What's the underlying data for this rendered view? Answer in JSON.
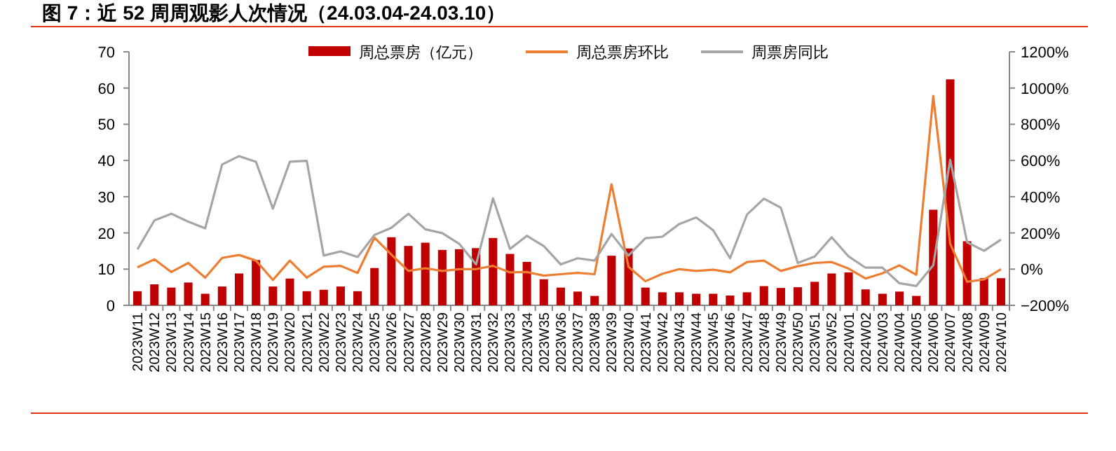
{
  "chart_data": {
    "type": "bar",
    "title": "图 7：近 52 周周观影人次情况（24.03.04-24.03.10）",
    "categories": [
      "2023W11",
      "2023W12",
      "2023W13",
      "2023W14",
      "2023W15",
      "2023W16",
      "2023W17",
      "2023W18",
      "2023W19",
      "2023W20",
      "2023W21",
      "2023W22",
      "2023W23",
      "2023W24",
      "2023W25",
      "2023W26",
      "2023W27",
      "2023W28",
      "2023W29",
      "2023W30",
      "2023W31",
      "2023W32",
      "2023W33",
      "2023W34",
      "2023W35",
      "2023W36",
      "2023W37",
      "2023W38",
      "2023W39",
      "2023W40",
      "2023W41",
      "2023W42",
      "2023W43",
      "2023W44",
      "2023W45",
      "2023W46",
      "2023W47",
      "2023W48",
      "2023W49",
      "2023W50",
      "2023W51",
      "2023W52",
      "2024W01",
      "2024W02",
      "2024W03",
      "2024W04",
      "2024W05",
      "2024W06",
      "2024W07",
      "2024W08",
      "2024W09",
      "2024W10"
    ],
    "series": [
      {
        "name": "周总票房（亿元）",
        "color": "#c00000",
        "values": [
          3.9,
          5.8,
          4.9,
          6.3,
          3.2,
          5.2,
          8.8,
          12.5,
          5.2,
          7.4,
          3.9,
          4.3,
          5.2,
          3.9,
          10.3,
          18.8,
          16.4,
          17.3,
          15.3,
          15.5,
          15.8,
          18.6,
          14.2,
          12.0,
          7.2,
          4.9,
          3.8,
          2.6,
          13.7,
          15.7,
          4.9,
          3.6,
          3.6,
          3.2,
          3.2,
          2.7,
          3.6,
          5.3,
          4.8,
          5.0,
          6.5,
          8.8,
          9.1,
          4.4,
          3.2,
          3.8,
          2.6,
          26.4,
          62.4,
          17.7,
          7.5,
          7.5
        ]
      },
      {
        "name": "周总票房环比",
        "type": "line",
        "axis": "y2",
        "color": "#ed7d31",
        "values": [
          10,
          54,
          -16,
          34,
          -47,
          62,
          78,
          47,
          -60,
          47,
          -47,
          13,
          18,
          -21,
          174,
          80,
          -10,
          5,
          -10,
          0,
          0,
          18,
          -18,
          -16,
          -36,
          -28,
          -21,
          -28,
          469,
          13,
          -67,
          -26,
          0,
          -10,
          -3,
          -18,
          39,
          47,
          -10,
          16,
          34,
          39,
          3,
          -52,
          -23,
          21,
          -31,
          956,
          140,
          -70,
          -57,
          0
        ]
      },
      {
        "name": "周票房同比",
        "type": "line",
        "axis": "y2",
        "color": "#a5a5a5",
        "values": [
          109,
          269,
          306,
          262,
          225,
          578,
          624,
          593,
          334,
          593,
          598,
          75,
          98,
          67,
          189,
          228,
          306,
          220,
          199,
          140,
          26,
          391,
          111,
          184,
          127,
          26,
          60,
          47,
          194,
          75,
          171,
          179,
          249,
          285,
          215,
          60,
          301,
          389,
          339,
          34,
          70,
          176,
          70,
          8,
          8,
          -78,
          -93,
          21,
          604,
          148,
          101,
          163
        ]
      }
    ],
    "ylim": [
      0,
      70
    ],
    "yticks": [
      0,
      10,
      20,
      30,
      40,
      50,
      60,
      70
    ],
    "y2lim": [
      -200,
      1200
    ],
    "y2ticks": [
      {
        "value": -200,
        "label": "−200%"
      },
      {
        "value": 0,
        "label": "0%"
      },
      {
        "value": 200,
        "label": "200%"
      },
      {
        "value": 400,
        "label": "400%"
      },
      {
        "value": 600,
        "label": "600%"
      },
      {
        "value": 800,
        "label": "800%"
      },
      {
        "value": 1000,
        "label": "1000%"
      },
      {
        "value": 1200,
        "label": "1200%"
      }
    ],
    "legend": "top",
    "grid": false
  }
}
